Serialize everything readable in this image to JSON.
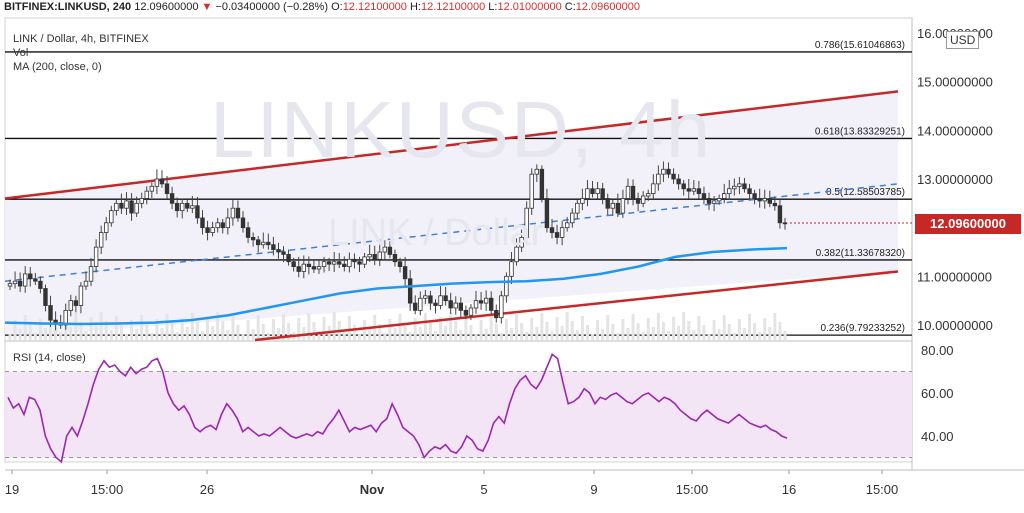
{
  "header": {
    "symbol": "BITFINEX:LINKUSD, 240",
    "last": "12.09600000",
    "change": "−0.03400000 (−0.28%)",
    "o_label": "O:",
    "o": "12.12100000",
    "h_label": "H:",
    "h": "12.12100000",
    "l_label": "L:",
    "l": "12.01000000",
    "c_label": "C:",
    "c": "12.09600000"
  },
  "info": {
    "title": "LINK / Dollar, 4h, BITFINEX",
    "vol": "Vol",
    "ma": "MA (200, close, 0)",
    "rsi": "RSI (14, close)"
  },
  "watermark": {
    "big": "LINKUSD, 4h",
    "small": "LINK / Dollar"
  },
  "currency": "USD",
  "current_price": "12.09600000",
  "colors": {
    "up": "#26a69a",
    "down": "#ef5350",
    "ma": "#2196f3",
    "channel": "#c62828",
    "rsi_line": "#9c27b0",
    "rsi_band": "#f3e5f5",
    "price_tag": "#c62828"
  },
  "chart_data": [
    {
      "type": "candlestick",
      "title": "LINK / Dollar, 4h, BITFINEX",
      "ylim": [
        9.7,
        16.1
      ],
      "y_ticks": [
        "16.00000000",
        "15.00000000",
        "14.00000000",
        "13.00000000",
        "11.00000000",
        "10.00000000"
      ],
      "x_ticks": [
        "19",
        "15:00",
        "26",
        "Nov",
        "5",
        "9",
        "15:00",
        "16",
        "15:00"
      ],
      "fib_levels": [
        {
          "label": "0.786(15.61046863)",
          "value": 15.61046863
        },
        {
          "label": "0.618(13.83329251)",
          "value": 13.83329251
        },
        {
          "label": "0.5(12.58503785)",
          "value": 12.58503785
        },
        {
          "label": "0.382(11.33678320)",
          "value": 11.3367832
        },
        {
          "label": "0.236(9.79233252)",
          "value": 9.79233252
        }
      ],
      "close": [
        10.85,
        10.9,
        10.8,
        11.05,
        10.95,
        10.9,
        10.75,
        10.4,
        10.1,
        10.05,
        10.0,
        10.3,
        10.5,
        10.4,
        10.8,
        10.9,
        11.2,
        11.6,
        11.9,
        12.1,
        12.35,
        12.5,
        12.4,
        12.55,
        12.3,
        12.5,
        12.6,
        12.75,
        12.85,
        13.0,
        12.9,
        12.7,
        12.5,
        12.35,
        12.5,
        12.4,
        12.45,
        12.2,
        12.0,
        11.9,
        12.0,
        12.1,
        12.0,
        12.2,
        12.4,
        12.2,
        12.0,
        11.8,
        11.75,
        11.65,
        11.7,
        11.65,
        11.55,
        11.5,
        11.45,
        11.3,
        11.2,
        11.1,
        11.25,
        11.2,
        11.15,
        11.2,
        11.3,
        11.25,
        11.3,
        11.25,
        11.2,
        11.35,
        11.3,
        11.25,
        11.4,
        11.45,
        11.35,
        11.5,
        11.6,
        11.45,
        11.3,
        11.2,
        10.95,
        10.45,
        10.3,
        10.55,
        10.6,
        10.45,
        10.4,
        10.6,
        10.5,
        10.35,
        10.45,
        10.3,
        10.2,
        10.35,
        10.5,
        10.45,
        10.55,
        10.3,
        10.15,
        10.6,
        11.0,
        11.3,
        11.6,
        11.8,
        12.4,
        13.1,
        13.2,
        12.6,
        12.0,
        11.9,
        11.8,
        12.0,
        12.1,
        12.3,
        12.5,
        12.6,
        12.8,
        12.7,
        12.8,
        12.6,
        12.4,
        12.5,
        12.3,
        12.6,
        12.85,
        12.6,
        12.5,
        12.65,
        12.7,
        12.9,
        13.1,
        13.2,
        13.1,
        13.0,
        12.9,
        12.8,
        12.75,
        12.8,
        12.7,
        12.6,
        12.5,
        12.55,
        12.6,
        12.7,
        12.8,
        12.85,
        12.9,
        12.8,
        12.7,
        12.6,
        12.55,
        12.6,
        12.5,
        12.45,
        12.1,
        12.096
      ],
      "ma_200": [
        10.05,
        10.03,
        10.02,
        10.03,
        10.05,
        10.1,
        10.2,
        10.35,
        10.5,
        10.65,
        10.75,
        10.8,
        10.85,
        10.88,
        10.9,
        10.95,
        11.05,
        11.2,
        11.4,
        11.5,
        11.55,
        11.58
      ],
      "channel_upper": [
        12.6,
        14.8
      ],
      "channel_lower": [
        9.75,
        11.1
      ],
      "midline": [
        10.9,
        12.9
      ],
      "last_price": 12.096
    },
    {
      "type": "line",
      "title": "RSI (14, close)",
      "ylim": [
        26,
        82
      ],
      "y_ticks": [
        "80.00",
        "60.00",
        "40.00"
      ],
      "upper_band": 70,
      "lower_band": 30,
      "values": [
        58,
        53,
        55,
        50,
        58,
        57,
        52,
        40,
        34,
        30,
        28,
        40,
        44,
        40,
        47,
        55,
        64,
        71,
        75,
        72,
        73,
        70,
        68,
        72,
        69,
        71,
        72,
        75,
        76,
        70,
        60,
        55,
        52,
        54,
        50,
        44,
        42,
        44,
        45,
        43,
        50,
        55,
        52,
        48,
        42,
        44,
        42,
        40,
        41,
        40,
        42,
        44,
        42,
        40,
        39,
        40,
        41,
        40,
        42,
        41,
        45,
        48,
        52,
        47,
        42,
        44,
        43,
        44,
        45,
        42,
        46,
        48,
        55,
        50,
        44,
        42,
        40,
        36,
        30,
        33,
        35,
        34,
        36,
        33,
        32,
        35,
        40,
        38,
        34,
        33,
        38,
        46,
        49,
        46,
        55,
        62,
        66,
        68,
        64,
        62,
        66,
        72,
        78,
        76,
        65,
        55,
        56,
        58,
        62,
        60,
        55,
        58,
        57,
        59,
        60,
        58,
        56,
        55,
        57,
        59,
        60,
        58,
        56,
        58,
        57,
        55,
        52,
        50,
        48,
        47,
        50,
        52,
        50,
        48,
        47,
        46,
        48,
        50,
        48,
        46,
        45,
        44,
        45,
        43,
        42,
        40,
        39
      ]
    }
  ]
}
